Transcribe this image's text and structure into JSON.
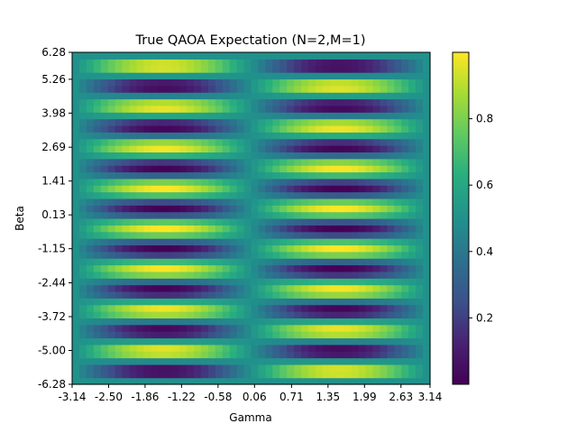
{
  "chart_data": {
    "type": "heatmap",
    "title": "True QAOA Expectation (N=2,M=1)",
    "xlabel": "Gamma",
    "ylabel": "Beta",
    "xlim": [
      -3.14,
      3.14
    ],
    "ylim": [
      -6.28,
      6.28
    ],
    "x_ticks": [
      "-3.14",
      "-2.50",
      "-1.86",
      "-1.22",
      "-0.58",
      "0.06",
      "0.71",
      "1.35",
      "1.99",
      "2.63",
      "3.14"
    ],
    "y_ticks": [
      "-6.28",
      "-5.00",
      "-3.72",
      "-2.44",
      "-1.15",
      "0.13",
      "1.41",
      "2.69",
      "3.98",
      "5.26",
      "6.28"
    ],
    "grid_cols": 50,
    "grid_rows": 50,
    "value_model": "0.5 + 0.5*sin(gamma)*sin(4*beta)",
    "colormap": "viridis",
    "colorbar": {
      "vmin": 0.0,
      "vmax": 1.0,
      "ticks": [
        "0.2",
        "0.4",
        "0.6",
        "0.8"
      ],
      "tick_values": [
        0.2,
        0.4,
        0.6,
        0.8
      ]
    },
    "grid": false
  }
}
